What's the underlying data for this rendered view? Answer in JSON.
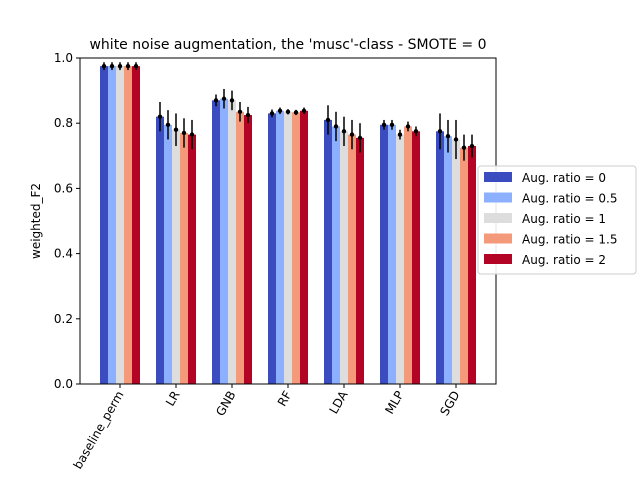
{
  "chart_data": {
    "type": "bar",
    "title": "white noise augmentation, the 'musc'-class - SMOTE = 0",
    "xlabel": "",
    "ylabel": "weighted_F2",
    "ylim": [
      0,
      1.0
    ],
    "yticks": [
      "0.0",
      "0.2",
      "0.4",
      "0.6",
      "0.8",
      "1.0"
    ],
    "categories": [
      "baseline_perm",
      "LR",
      "GNB",
      "RF",
      "LDA",
      "MLP",
      "SGD"
    ],
    "legend_position": "right-outside",
    "grid": false,
    "series": [
      {
        "name": "Aug. ratio = 0",
        "color": "#3b4cc0",
        "values": [
          0.975,
          0.82,
          0.87,
          0.83,
          0.81,
          0.795,
          0.775
        ],
        "errors": [
          0.012,
          0.045,
          0.018,
          0.012,
          0.045,
          0.015,
          0.055
        ]
      },
      {
        "name": "Aug. ratio = 0.5",
        "color": "#8db0fe",
        "values": [
          0.975,
          0.795,
          0.875,
          0.838,
          0.79,
          0.795,
          0.76
        ],
        "errors": [
          0.012,
          0.045,
          0.03,
          0.01,
          0.045,
          0.015,
          0.05
        ]
      },
      {
        "name": "Aug. ratio = 1",
        "color": "#dddddd",
        "values": [
          0.975,
          0.78,
          0.87,
          0.835,
          0.775,
          0.765,
          0.75
        ],
        "errors": [
          0.012,
          0.05,
          0.03,
          0.008,
          0.045,
          0.015,
          0.06
        ]
      },
      {
        "name": "Aug. ratio = 1.5",
        "color": "#f49a7b",
        "values": [
          0.975,
          0.77,
          0.835,
          0.833,
          0.765,
          0.79,
          0.725
        ],
        "errors": [
          0.012,
          0.045,
          0.03,
          0.008,
          0.045,
          0.015,
          0.04
        ]
      },
      {
        "name": "Aug. ratio = 2",
        "color": "#b40426",
        "values": [
          0.975,
          0.765,
          0.825,
          0.838,
          0.755,
          0.775,
          0.73
        ],
        "errors": [
          0.012,
          0.045,
          0.025,
          0.01,
          0.045,
          0.015,
          0.035
        ]
      }
    ]
  }
}
